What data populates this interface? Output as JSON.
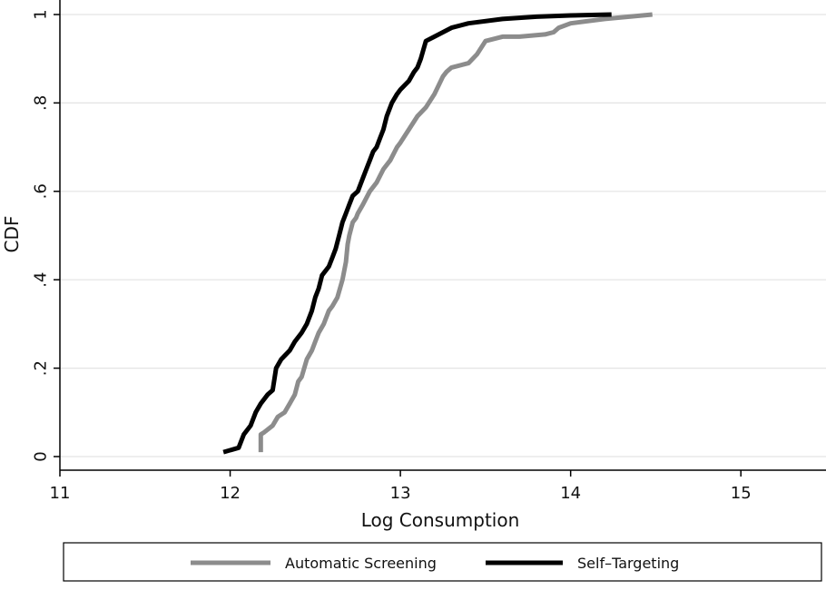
{
  "chart_data": {
    "type": "line",
    "xlabel": "Log Consumption",
    "ylabel": "CDF",
    "xlim": [
      11,
      15.5
    ],
    "ylim": [
      0,
      1
    ],
    "x_ticks": [
      11,
      12,
      13,
      14,
      15
    ],
    "x_tick_labels": [
      "11",
      "12",
      "13",
      "14",
      "15"
    ],
    "y_ticks": [
      0,
      0.2,
      0.4,
      0.6,
      0.8,
      1
    ],
    "y_tick_labels": [
      "0",
      ".2",
      ".4",
      ".6",
      ".8",
      "1"
    ],
    "grid": "horizontal",
    "legend_position": "bottom",
    "series": [
      {
        "name": "Automatic Screening",
        "color": "#8c8c8c",
        "x": [
          12.18,
          12.18,
          12.2,
          12.25,
          12.28,
          12.32,
          12.35,
          12.38,
          12.4,
          12.42,
          12.45,
          12.48,
          12.5,
          12.52,
          12.55,
          12.58,
          12.6,
          12.63,
          12.66,
          12.68,
          12.69,
          12.7,
          12.72,
          12.74,
          12.75,
          12.78,
          12.82,
          12.86,
          12.9,
          12.94,
          12.98,
          13.0,
          13.05,
          13.1,
          13.15,
          13.2,
          13.25,
          13.27,
          13.3,
          13.4,
          13.45,
          13.5,
          13.55,
          13.6,
          13.7,
          13.85,
          13.9,
          13.93,
          14.0,
          14.2,
          14.48
        ],
        "y": [
          0.01,
          0.05,
          0.055,
          0.07,
          0.09,
          0.1,
          0.12,
          0.14,
          0.17,
          0.18,
          0.22,
          0.24,
          0.26,
          0.28,
          0.3,
          0.33,
          0.34,
          0.36,
          0.4,
          0.44,
          0.48,
          0.5,
          0.53,
          0.54,
          0.55,
          0.57,
          0.6,
          0.62,
          0.65,
          0.67,
          0.7,
          0.71,
          0.74,
          0.77,
          0.79,
          0.82,
          0.86,
          0.87,
          0.88,
          0.89,
          0.91,
          0.94,
          0.945,
          0.95,
          0.95,
          0.955,
          0.96,
          0.97,
          0.98,
          0.99,
          1.0
        ]
      },
      {
        "name": "Self–Targeting",
        "color": "#000000",
        "x": [
          11.96,
          12.05,
          12.08,
          12.12,
          12.15,
          12.18,
          12.22,
          12.25,
          12.27,
          12.3,
          12.35,
          12.38,
          12.42,
          12.45,
          12.48,
          12.5,
          12.52,
          12.54,
          12.58,
          12.6,
          12.62,
          12.64,
          12.66,
          12.68,
          12.7,
          12.72,
          12.75,
          12.78,
          12.8,
          12.82,
          12.84,
          12.86,
          12.88,
          12.9,
          12.92,
          12.95,
          12.98,
          13.0,
          13.05,
          13.08,
          13.1,
          13.12,
          13.15,
          13.2,
          13.25,
          13.3,
          13.4,
          13.6,
          13.8,
          14.0,
          14.24
        ],
        "y": [
          0.01,
          0.02,
          0.05,
          0.07,
          0.1,
          0.12,
          0.14,
          0.15,
          0.2,
          0.22,
          0.24,
          0.26,
          0.28,
          0.3,
          0.33,
          0.36,
          0.38,
          0.41,
          0.43,
          0.45,
          0.47,
          0.5,
          0.53,
          0.55,
          0.57,
          0.59,
          0.6,
          0.63,
          0.65,
          0.67,
          0.69,
          0.7,
          0.72,
          0.74,
          0.77,
          0.8,
          0.82,
          0.83,
          0.85,
          0.87,
          0.88,
          0.9,
          0.94,
          0.95,
          0.96,
          0.97,
          0.98,
          0.99,
          0.995,
          0.998,
          1.0
        ]
      }
    ]
  }
}
